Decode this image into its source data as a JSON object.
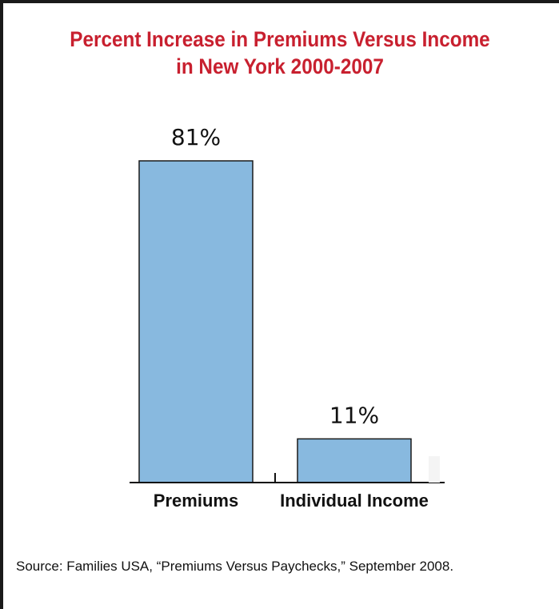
{
  "chart_data": {
    "type": "bar",
    "title_line1": "Percent Increase in Premiums Versus Income",
    "title_line2": "in New York 2000-2007",
    "categories": [
      "Premiums",
      "Individual Income"
    ],
    "values": [
      81,
      11
    ],
    "value_labels": [
      "81%",
      "11%"
    ],
    "ylim": [
      0,
      100
    ],
    "grid": false,
    "bar_color": "#88b9df",
    "title_color": "#c8202f"
  },
  "source": "Source: Families USA, “Premiums Versus Paychecks,” September 2008."
}
